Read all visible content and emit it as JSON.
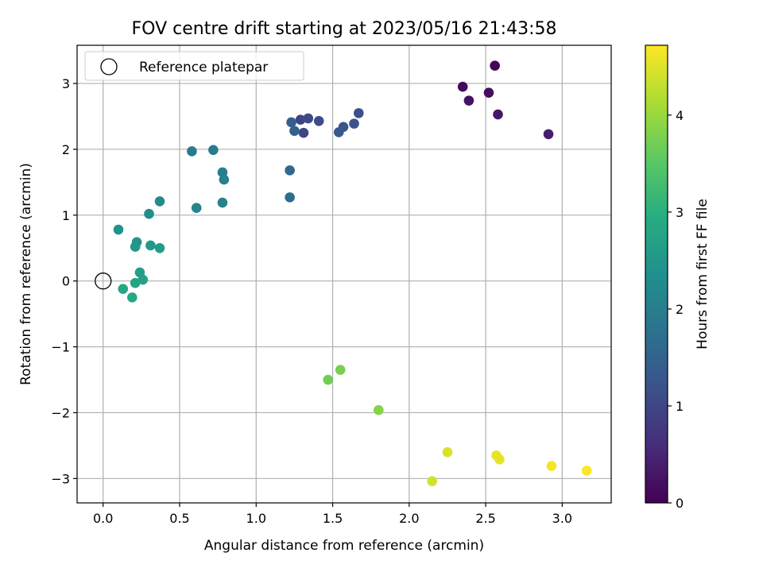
{
  "chart_data": {
    "type": "scatter",
    "title": "FOV centre drift starting at 2023/05/16 21:43:58",
    "xlabel": "Angular distance from reference (arcmin)",
    "ylabel": "Rotation from reference (arcmin)",
    "xlim": [
      -0.17,
      3.32
    ],
    "ylim": [
      -3.37,
      3.58
    ],
    "xticks": [
      0.0,
      0.5,
      1.0,
      1.5,
      2.0,
      2.5,
      3.0
    ],
    "xtick_labels": [
      "0.0",
      "0.5",
      "1.0",
      "1.5",
      "2.0",
      "2.5",
      "3.0"
    ],
    "yticks": [
      -3,
      -2,
      -1,
      0,
      1,
      2,
      3
    ],
    "ytick_labels": [
      "−3",
      "−2",
      "−1",
      "0",
      "1",
      "2",
      "3"
    ],
    "grid": true,
    "legend": {
      "position": "upper-left",
      "entries": [
        "Reference platepar"
      ]
    },
    "reference_point": {
      "x": 0.0,
      "y": 0.0
    },
    "colorbar": {
      "label": "Hours from first FF file",
      "colormap": "viridis",
      "range": [
        0,
        4.72
      ],
      "ticks": [
        0,
        1,
        2,
        3,
        4
      ],
      "tick_labels": [
        "0",
        "1",
        "2",
        "3",
        "4"
      ]
    },
    "series": [
      {
        "x": [
          2.56,
          2.35,
          2.52,
          2.39,
          2.58,
          2.91,
          1.29,
          1.31,
          1.34,
          1.41,
          1.67,
          1.64,
          1.57,
          1.54,
          1.23,
          1.25,
          1.22,
          1.22,
          0.58,
          0.72,
          0.78,
          0.79,
          0.78,
          0.61,
          0.37,
          0.3,
          0.1,
          0.22,
          0.21,
          0.31,
          0.37,
          0.24,
          0.26,
          0.21,
          0.13,
          0.19,
          1.47,
          1.55,
          1.8,
          2.15,
          2.25,
          2.57,
          2.59,
          2.93,
          3.16
        ],
        "y": [
          3.27,
          2.95,
          2.86,
          2.74,
          2.53,
          2.23,
          2.45,
          2.25,
          2.47,
          2.43,
          2.55,
          2.39,
          2.34,
          2.26,
          2.41,
          2.28,
          1.68,
          1.27,
          1.97,
          1.99,
          1.65,
          1.54,
          1.19,
          1.11,
          1.21,
          1.02,
          0.78,
          0.59,
          0.52,
          0.54,
          0.5,
          0.13,
          0.02,
          -0.03,
          -0.12,
          -0.25,
          -1.5,
          -1.35,
          -1.96,
          -3.04,
          -2.6,
          -2.65,
          -2.71,
          -2.81,
          -2.88
        ],
        "hours": [
          0.05,
          0.12,
          0.18,
          0.25,
          0.32,
          0.4,
          0.95,
          1.0,
          1.05,
          1.1,
          1.15,
          1.2,
          1.25,
          1.3,
          1.4,
          1.5,
          1.6,
          1.7,
          1.9,
          1.95,
          2.0,
          2.05,
          2.1,
          2.15,
          2.25,
          2.3,
          2.4,
          2.45,
          2.5,
          2.55,
          2.6,
          2.65,
          2.7,
          2.75,
          2.8,
          2.85,
          3.7,
          3.75,
          3.85,
          4.4,
          4.45,
          4.55,
          4.55,
          4.65,
          4.7
        ]
      }
    ]
  }
}
